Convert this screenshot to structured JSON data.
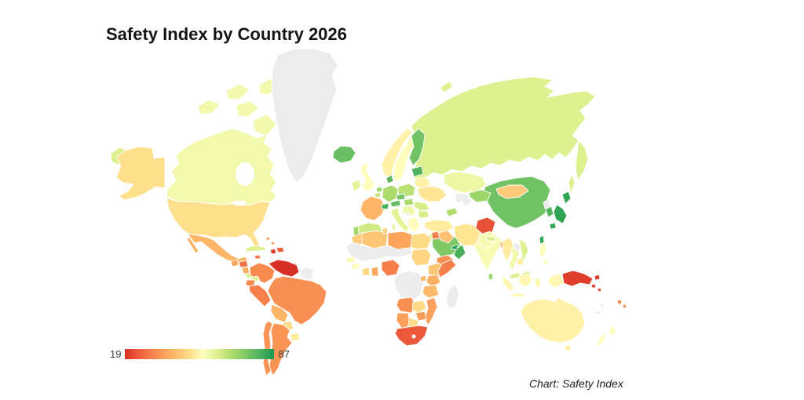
{
  "header": {
    "title": "Safety Index by Country 2026"
  },
  "legend": {
    "min_label": "19",
    "max_label": "87"
  },
  "caption": {
    "text": "Chart: Safety Index"
  },
  "chart_data": {
    "type": "heatmap",
    "subtype": "choropleth-world-map",
    "title": "Safety Index by Country 2026",
    "caption": "Chart: Safety Index",
    "scale": {
      "domain_min": 19,
      "domain_max": 87,
      "no_data_color": "#ececec",
      "stops": [
        {
          "t": 0.0,
          "color": "#d73027"
        },
        {
          "t": 0.13,
          "color": "#f46d43"
        },
        {
          "t": 0.3,
          "color": "#fdae61"
        },
        {
          "t": 0.44,
          "color": "#fee08b"
        },
        {
          "t": 0.52,
          "color": "#ffffbf"
        },
        {
          "t": 0.63,
          "color": "#d9ef8b"
        },
        {
          "t": 0.73,
          "color": "#a6d96a"
        },
        {
          "t": 0.86,
          "color": "#66bd63"
        },
        {
          "t": 1.0,
          "color": "#1a9850"
        }
      ]
    },
    "values": {
      "United States": 49,
      "Canada": 57,
      "Mexico": 41,
      "Guatemala": 38,
      "Honduras": 29,
      "Nicaragua": 40,
      "Costa Rica": 61,
      "Panama": 61,
      "Cuba": 61,
      "Jamaica": 30,
      "Haiti": 21,
      "Dominican Republic": 26,
      "Bahamas": 36,
      "Trinidad and Tobago": 34,
      "Colombia": 33,
      "Venezuela": 19,
      "Ecuador": 33,
      "Peru": 31,
      "Brazil": 34,
      "Bolivia": 41,
      "Paraguay": 48,
      "Uruguay": 51,
      "Argentina": 35,
      "Chile": 35,
      "Iceland": 77,
      "Ireland": 60,
      "United Kingdom": 54,
      "Portugal": 69,
      "Spain": 63,
      "France": 41,
      "Belgium": 64,
      "Netherlands": 70,
      "Germany": 68,
      "Denmark": 79,
      "Switzerland": 81,
      "Austria": 77,
      "Czechia": 76,
      "Italy": 60,
      "Norway": 52,
      "Sweden": 54,
      "Finland": 76,
      "Estonia": 80,
      "Belarus": 52,
      "Poland": 66,
      "Ukraine": 50,
      "Romania": 62,
      "Hungary": 68,
      "Serbia": 58,
      "Bulgaria": 62,
      "Greece": 54,
      "Russia": 61,
      "Kazakhstan": 58,
      "Uzbekistan": 70,
      "Georgia": 67,
      "Turkey": 51,
      "Syria": 31,
      "Jordan": 61,
      "Iraq": 43,
      "Iran": 50,
      "Afghanistan": 24,
      "Pakistan": 56,
      "Saudi Arabia": 74,
      "Yemen": 34,
      "Oman": 81,
      "United Arab Emirates": 85,
      "India": 56,
      "Sri Lanka": 70,
      "Bangladesh": 38,
      "Nepal": 62,
      "China": 76,
      "Mongolia": 45,
      "South Korea": 80,
      "Japan": 84,
      "Taiwan": 84,
      "Myanmar": 51,
      "Thailand": 57,
      "Vietnam": 61,
      "Cambodia": 51,
      "Malaysia": 61,
      "Indonesia": 53,
      "Philippines": 55,
      "Papua New Guinea": 21,
      "Solomon Islands": 22,
      "Fiji": 33,
      "Australia": 52,
      "New Zealand": 54,
      "Morocco": 45,
      "Algeria": 44,
      "Tunisia": 46,
      "Libya": 38,
      "Egypt": 48,
      "Senegal": 56,
      "Guinea": 55,
      "Ivory Coast": 47,
      "Ghana": 38,
      "Nigeria": 31,
      "Sudan": 47,
      "Ethiopia": 44,
      "Somalia": 31,
      "Uganda": 42,
      "Kenya": 40,
      "Tanzania": 42,
      "Angola": 34,
      "Zambia": 48,
      "Mozambique": 37,
      "Zimbabwe": 36,
      "Namibia": 37,
      "Botswana": 48,
      "South Africa": 25
    },
    "no_data": [
      "Greenland",
      "Sahara-Sahel region",
      "Central Africa",
      "Madagascar",
      "Guyana and Suriname",
      "Turkmenistan",
      "Laos",
      "North Korea",
      "Bosnia and Herzegovina",
      "New Caledonia",
      "Vanuatu"
    ]
  }
}
